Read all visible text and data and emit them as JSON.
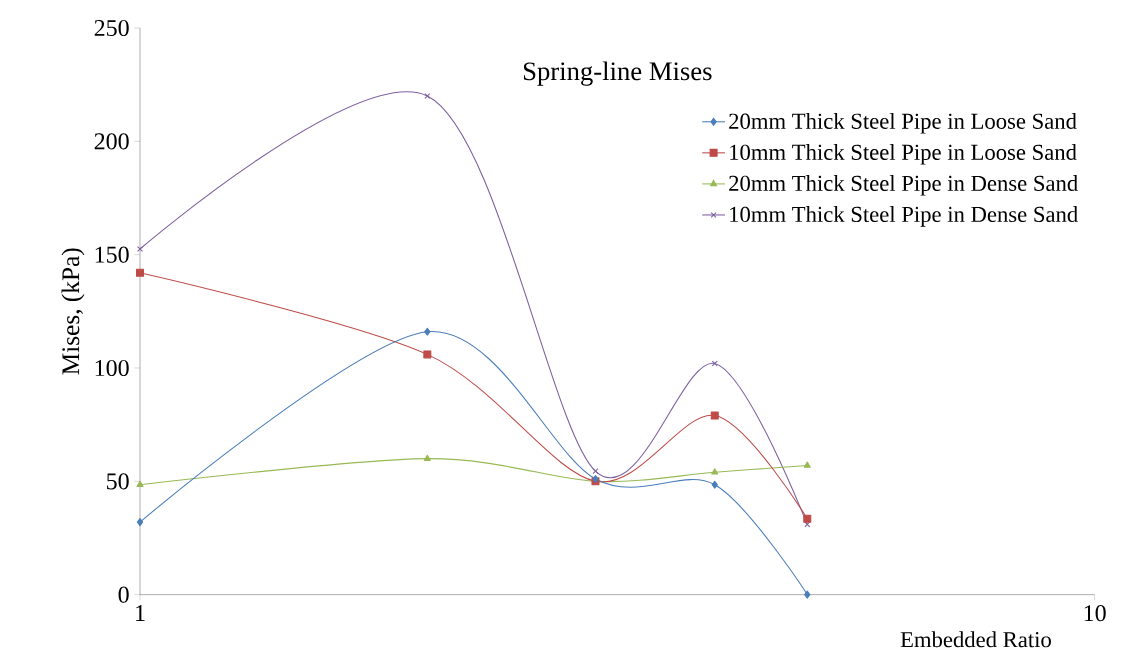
{
  "chart_data": {
    "type": "line",
    "title": "Spring-line Mises",
    "xlabel": "Embedded Ratio",
    "ylabel": "Mises, (kPa)",
    "log": "x",
    "x": [
      1,
      2,
      3,
      4,
      5
    ],
    "xlim": [
      1,
      10
    ],
    "xticks": [
      1,
      10
    ],
    "ylim": [
      0,
      250
    ],
    "yticks": [
      0,
      50,
      100,
      150,
      200,
      250
    ],
    "legend": "top right",
    "grid": false,
    "series": [
      {
        "name": "20mm Thick Steel Pipe in Loose Sand",
        "color": "#4a7ebb",
        "marker": "diamond",
        "values": [
          32,
          116,
          51,
          48.5,
          0
        ]
      },
      {
        "name": "10mm Thick Steel Pipe in Loose Sand",
        "color": "#be4b48",
        "marker": "square",
        "values": [
          142,
          106,
          50,
          79,
          33.5
        ]
      },
      {
        "name": "20mm Thick Steel Pipe in Dense Sand",
        "color": "#98b954",
        "marker": "triangle",
        "values": [
          48.5,
          60,
          50,
          54,
          57
        ]
      },
      {
        "name": "10mm Thick Steel Pipe in Dense Sand",
        "color": "#7d60a0",
        "marker": "cross",
        "values": [
          152.5,
          220,
          54.5,
          102,
          31
        ]
      }
    ]
  }
}
